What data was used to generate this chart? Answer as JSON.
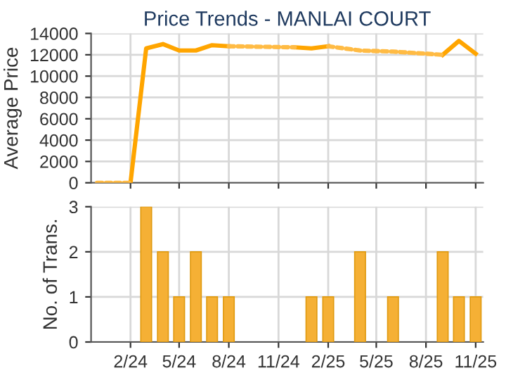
{
  "chart_data": [
    {
      "type": "line",
      "title": "Price Trends - MANLAI COURT",
      "ylabel": "Average Price",
      "x": [
        "2024-02",
        "2024-03",
        "2024-04",
        "2024-05",
        "2024-06",
        "2024-07",
        "2024-08",
        "2024-09",
        "2024-10",
        "2024-11",
        "2024-12",
        "2025-01",
        "2025-02",
        "2025-03",
        "2025-04",
        "2025-05",
        "2025-06",
        "2025-07",
        "2025-08",
        "2025-09",
        "2025-10",
        "2025-11"
      ],
      "series": [
        {
          "color": "#ffa500",
          "line_style": "solid",
          "values": [
            0,
            12600,
            13000,
            12400,
            12400,
            12900,
            12800,
            null,
            null,
            null,
            12700,
            12600,
            12800,
            null,
            null,
            null,
            null,
            null,
            null,
            12000,
            13300,
            12100
          ]
        },
        {
          "color": "#ffbb44",
          "line_style": "dotted",
          "x": [
            "2023-12",
            "2024-02",
            "2024-05",
            "2024-08",
            "2024-12",
            "2025-01",
            "2025-02",
            "2025-04",
            "2025-06",
            "2025-09"
          ],
          "values": [
            0,
            0,
            null,
            12800,
            12700,
            null,
            12800,
            12400,
            12300,
            12000
          ]
        }
      ],
      "xlim": [
        "2023-11-20",
        "2025-11-15"
      ],
      "xticks": [
        {
          "value": "2024-02",
          "label": null
        },
        {
          "value": "2024-05",
          "label": null
        },
        {
          "value": "2024-08",
          "label": null
        },
        {
          "value": "2024-11",
          "label": null
        },
        {
          "value": "2025-02",
          "label": null
        },
        {
          "value": "2025-05",
          "label": null
        },
        {
          "value": "2025-08",
          "label": null
        },
        {
          "value": "2025-11",
          "label": null
        }
      ],
      "ylim": [
        0,
        14000
      ],
      "yticks": [
        0,
        2000,
        4000,
        6000,
        8000,
        10000,
        12000,
        14000
      ],
      "grid": true,
      "tick_labels": "y"
    },
    {
      "type": "bar",
      "ylabel": "No. of Trans.",
      "x": [
        "2024-03",
        "2024-04",
        "2024-05",
        "2024-06",
        "2024-07",
        "2024-08",
        "2025-01",
        "2025-02",
        "2025-04",
        "2025-06",
        "2025-09",
        "2025-10",
        "2025-11"
      ],
      "values": [
        3,
        2,
        1,
        2,
        1,
        1,
        1,
        1,
        2,
        1,
        2,
        1,
        1
      ],
      "color": "#f5b035",
      "xlim": [
        "2023-11-20",
        "2025-11-15"
      ],
      "xticks": [
        {
          "value": "2024-02",
          "label": "2/24"
        },
        {
          "value": "2024-05",
          "label": "5/24"
        },
        {
          "value": "2024-08",
          "label": "8/24"
        },
        {
          "value": "2024-11",
          "label": "11/24"
        },
        {
          "value": "2025-02",
          "label": "2/25"
        },
        {
          "value": "2025-05",
          "label": "5/25"
        },
        {
          "value": "2025-08",
          "label": "8/25"
        },
        {
          "value": "2025-11",
          "label": "11/25"
        }
      ],
      "ylim": [
        0,
        3
      ],
      "yticks": [
        0,
        1,
        2,
        3
      ],
      "grid": true
    }
  ]
}
